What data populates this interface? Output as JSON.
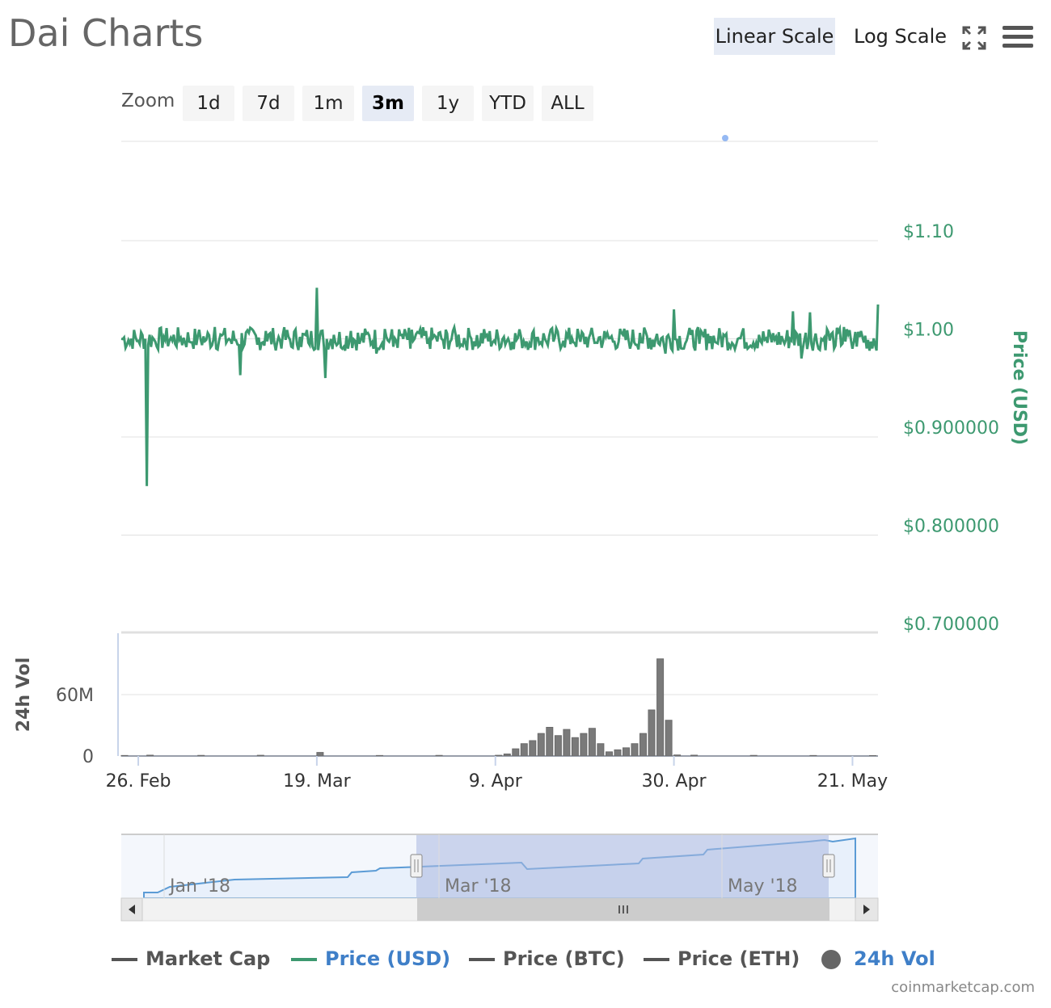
{
  "title": "Dai Charts",
  "scale_buttons": {
    "linear": "Linear Scale",
    "log": "Log Scale",
    "active": "linear"
  },
  "zoom": {
    "label": "Zoom",
    "buttons": [
      "1d",
      "7d",
      "1m",
      "3m",
      "1y",
      "YTD",
      "ALL"
    ],
    "active": "3m"
  },
  "chart_data": {
    "type": "line",
    "price_axis": {
      "label": "Price (USD)",
      "ticks": [
        "$1.10",
        "$1.00",
        "$0.900000",
        "$0.800000",
        "$0.700000"
      ],
      "tick_values": [
        1.1,
        1.0,
        0.9,
        0.8,
        0.7
      ],
      "ylim": [
        0.7,
        1.2
      ]
    },
    "volume_axis": {
      "label": "24h Vol",
      "ticks": [
        "60M",
        "0"
      ],
      "tick_values": [
        60000000,
        0
      ]
    },
    "x_ticks": [
      "26. Feb",
      "19. Mar",
      "9. Apr",
      "30. Apr",
      "21. May"
    ],
    "x_tick_dates": [
      "2018-02-26",
      "2018-03-19",
      "2018-04-09",
      "2018-04-30",
      "2018-05-21"
    ],
    "x_range": [
      "2018-02-24",
      "2018-05-24"
    ],
    "price_series": {
      "name": "Price (USD)",
      "color": "#3d9970",
      "points": [
        [
          "2018-02-24",
          1.0
        ],
        [
          "2018-02-25",
          0.995
        ],
        [
          "2018-02-26",
          0.998
        ],
        [
          "2018-02-27",
          0.85
        ],
        [
          "2018-02-28",
          0.997
        ],
        [
          "2018-03-01",
          1.002
        ],
        [
          "2018-03-02",
          0.998
        ],
        [
          "2018-03-03",
          1.001
        ],
        [
          "2018-03-04",
          0.997
        ],
        [
          "2018-03-05",
          1.003
        ],
        [
          "2018-03-06",
          0.999
        ],
        [
          "2018-03-07",
          1.012
        ],
        [
          "2018-03-08",
          1.005
        ],
        [
          "2018-03-09",
          0.995
        ],
        [
          "2018-03-10",
          0.963
        ],
        [
          "2018-03-11",
          1.006
        ],
        [
          "2018-03-12",
          0.994
        ],
        [
          "2018-03-13",
          1.008
        ],
        [
          "2018-03-14",
          0.996
        ],
        [
          "2018-03-15",
          1.004
        ],
        [
          "2018-03-16",
          0.992
        ],
        [
          "2018-03-17",
          1.002
        ],
        [
          "2018-03-18",
          0.996
        ],
        [
          "2018-03-19",
          1.052
        ],
        [
          "2018-03-20",
          0.96
        ],
        [
          "2018-03-21",
          1.004
        ],
        [
          "2018-03-22",
          0.99
        ],
        [
          "2018-03-23",
          1.008
        ],
        [
          "2018-03-24",
          0.995
        ],
        [
          "2018-03-25",
          1.006
        ],
        [
          "2018-03-26",
          0.985
        ],
        [
          "2018-03-27",
          1.01
        ],
        [
          "2018-03-28",
          0.992
        ],
        [
          "2018-03-29",
          1.004
        ],
        [
          "2018-03-30",
          0.99
        ],
        [
          "2018-03-31",
          1.006
        ],
        [
          "2018-04-01",
          0.995
        ],
        [
          "2018-04-02",
          1.002
        ],
        [
          "2018-04-03",
          0.99
        ],
        [
          "2018-04-04",
          1.008
        ],
        [
          "2018-04-05",
          0.994
        ],
        [
          "2018-04-06",
          1.003
        ],
        [
          "2018-04-07",
          0.992
        ],
        [
          "2018-04-08",
          1.004
        ],
        [
          "2018-04-09",
          0.996
        ],
        [
          "2018-04-10",
          1.002
        ],
        [
          "2018-04-11",
          0.997
        ],
        [
          "2018-04-12",
          1.003
        ],
        [
          "2018-04-13",
          0.995
        ],
        [
          "2018-04-14",
          1.001
        ],
        [
          "2018-04-15",
          0.997
        ],
        [
          "2018-04-16",
          1.002
        ],
        [
          "2018-04-17",
          0.998
        ],
        [
          "2018-04-18",
          1.001
        ],
        [
          "2018-04-19",
          0.997
        ],
        [
          "2018-04-20",
          1.001
        ],
        [
          "2018-04-21",
          0.996
        ],
        [
          "2018-04-22",
          1.002
        ],
        [
          "2018-04-23",
          0.997
        ],
        [
          "2018-04-24",
          1.004
        ],
        [
          "2018-04-25",
          0.995
        ],
        [
          "2018-04-26",
          1.006
        ],
        [
          "2018-04-27",
          0.99
        ],
        [
          "2018-04-28",
          1.005
        ],
        [
          "2018-04-29",
          0.985
        ],
        [
          "2018-04-30",
          1.03
        ],
        [
          "2018-05-01",
          0.99
        ],
        [
          "2018-05-02",
          1.004
        ],
        [
          "2018-05-03",
          0.995
        ],
        [
          "2018-05-04",
          1.005
        ],
        [
          "2018-05-05",
          0.996
        ],
        [
          "2018-05-06",
          1.003
        ],
        [
          "2018-05-07",
          0.994
        ],
        [
          "2018-05-08",
          1.006
        ],
        [
          "2018-05-09",
          0.993
        ],
        [
          "2018-05-10",
          1.004
        ],
        [
          "2018-05-11",
          0.996
        ],
        [
          "2018-05-12",
          1.002
        ],
        [
          "2018-05-13",
          0.995
        ],
        [
          "2018-05-14",
          1.028
        ],
        [
          "2018-05-15",
          0.98
        ],
        [
          "2018-05-16",
          1.027
        ],
        [
          "2018-05-17",
          0.99
        ],
        [
          "2018-05-18",
          1.01
        ],
        [
          "2018-05-19",
          0.993
        ],
        [
          "2018-05-20",
          1.012
        ],
        [
          "2018-05-21",
          0.99
        ],
        [
          "2018-05-22",
          1.008
        ],
        [
          "2018-05-23",
          0.988
        ],
        [
          "2018-05-24",
          1.035
        ]
      ]
    },
    "volume_series": {
      "name": "24h Vol",
      "color": "#7a7a7a",
      "points": [
        [
          "2018-02-24",
          0.5
        ],
        [
          "2018-02-27",
          0.8
        ],
        [
          "2018-03-05",
          0.6
        ],
        [
          "2018-03-12",
          0.7
        ],
        [
          "2018-03-19",
          3.5
        ],
        [
          "2018-03-26",
          0.5
        ],
        [
          "2018-04-02",
          0.6
        ],
        [
          "2018-04-09",
          0.7
        ],
        [
          "2018-04-10",
          2
        ],
        [
          "2018-04-11",
          7
        ],
        [
          "2018-04-12",
          12
        ],
        [
          "2018-04-13",
          15
        ],
        [
          "2018-04-14",
          22
        ],
        [
          "2018-04-15",
          28
        ],
        [
          "2018-04-16",
          20
        ],
        [
          "2018-04-17",
          26
        ],
        [
          "2018-04-18",
          18
        ],
        [
          "2018-04-19",
          22
        ],
        [
          "2018-04-20",
          27
        ],
        [
          "2018-04-21",
          12
        ],
        [
          "2018-04-22",
          4
        ],
        [
          "2018-04-23",
          6
        ],
        [
          "2018-04-24",
          8
        ],
        [
          "2018-04-25",
          12
        ],
        [
          "2018-04-26",
          22
        ],
        [
          "2018-04-27",
          45
        ],
        [
          "2018-04-28",
          95
        ],
        [
          "2018-04-29",
          35
        ],
        [
          "2018-04-30",
          1
        ],
        [
          "2018-05-02",
          0.8
        ],
        [
          "2018-05-09",
          0.6
        ],
        [
          "2018-05-16",
          0.5
        ],
        [
          "2018-05-23",
          0.4
        ]
      ]
    },
    "navigator": {
      "labels": [
        "Jan '18",
        "Mar '18",
        "May '18"
      ],
      "selection": [
        "2018-02-24",
        "2018-05-24"
      ]
    },
    "legend": [
      {
        "name": "Market Cap",
        "color": "#555555"
      },
      {
        "name": "Price (USD)",
        "color": "#3d9970"
      },
      {
        "name": "Price (BTC)",
        "color": "#555555"
      },
      {
        "name": "Price (ETH)",
        "color": "#555555"
      },
      {
        "name": "24h Vol",
        "color": "#666666"
      }
    ]
  },
  "credit": "coinmarketcap.com"
}
